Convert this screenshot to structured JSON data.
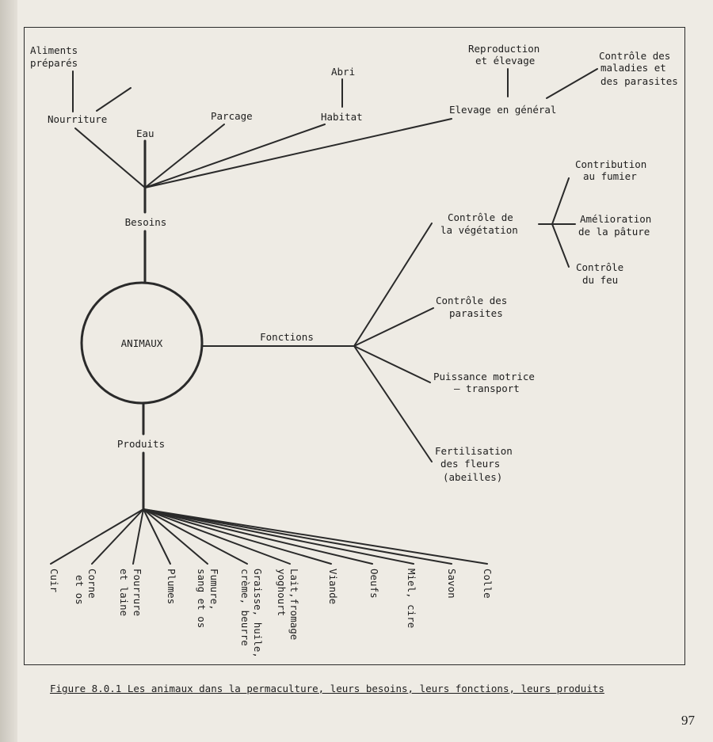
{
  "center": "ANIMAUX",
  "branches": {
    "besoins": "Besoins",
    "fonctions": "Fonctions",
    "produits": "Produits"
  },
  "besoins": {
    "aliments": [
      "Aliments",
      "préparés"
    ],
    "nourriture": "Nourriture",
    "eau": "Eau",
    "parcage": "Parcage",
    "abri": "Abri",
    "habitat": "Habitat",
    "reproduction": [
      "Reproduction",
      "et élevage"
    ],
    "controle_maladies": [
      "Contrôle des",
      "maladies  et",
      "des parasites"
    ],
    "elevage": "Elevage en général"
  },
  "fonctions": {
    "vegetation": [
      "Contrôle de",
      "la végétation"
    ],
    "parasites": [
      "Contrôle des",
      "parasites"
    ],
    "puissance": [
      "Puissance motrice",
      "— transport"
    ],
    "fertilisation": [
      "Fertilisation",
      "des fleurs",
      "(abeilles)"
    ],
    "vegetation_sub": {
      "fumier": [
        "Contribution",
        "au  fumier"
      ],
      "paturage": [
        "Amélioration",
        "de la pâture"
      ],
      "feu": [
        "Contrôle",
        "du feu"
      ]
    }
  },
  "produits": [
    [
      "Cuir"
    ],
    [
      "Corne",
      "et os"
    ],
    [
      "Fourrure",
      "et laine"
    ],
    [
      "Plumes"
    ],
    [
      "Fumure,",
      "sang et os"
    ],
    [
      "Graisse, huile,",
      "crème, beurre"
    ],
    [
      "Lait,fromage",
      "yoghourt"
    ],
    [
      "Viande"
    ],
    [
      "Oeufs"
    ],
    [
      "Miel, cire"
    ],
    [
      "Savon"
    ],
    [
      "Colle"
    ]
  ],
  "caption": "Figure 8.0.1  Les animaux dans la permaculture, leurs besoins, leurs fonctions, leurs produits",
  "page_number": "97"
}
